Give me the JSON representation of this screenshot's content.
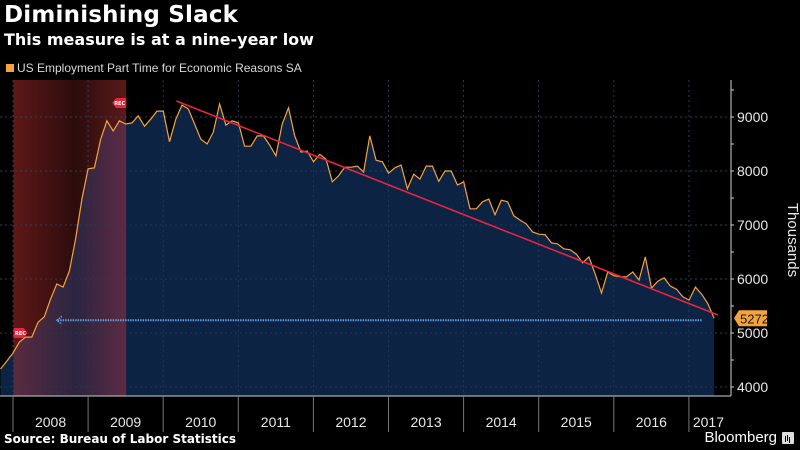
{
  "header": {
    "title": "Diminishing Slack",
    "subtitle": "This measure is at a nine-year low"
  },
  "footer": {
    "source": "Source: Bureau of Labor Statistics",
    "brand": "Bloomberg"
  },
  "colors": {
    "series": "#f5a33a",
    "area": "#0c2344",
    "trend": "#e8253e",
    "recession": "#6b1a1a",
    "arrow": "#5b9be0",
    "grid": "#555555"
  },
  "chart_data": {
    "type": "area",
    "title": "Diminishing Slack",
    "subtitle": "This measure is at a nine-year low",
    "legend": [
      "US Employment Part Time for Economic Reasons SA"
    ],
    "legend_position": "top-left",
    "ylabel": "Thousands",
    "xlabel": "",
    "ylim": [
      3850,
      9700
    ],
    "yticks": [
      4000,
      5000,
      6000,
      7000,
      8000,
      9000
    ],
    "xticks": [
      "2008",
      "2009",
      "2010",
      "2011",
      "2012",
      "2013",
      "2014",
      "2015",
      "2016",
      "2017"
    ],
    "x_start": "2007-10",
    "x_end": "2017-04",
    "grid": true,
    "series": [
      {
        "name": "US Employment Part Time for Economic Reasons SA",
        "frequency": "monthly",
        "start": "2007-10",
        "values": [
          4333,
          4480,
          4630,
          4830,
          4925,
          4925,
          5200,
          5300,
          5630,
          5910,
          5850,
          6150,
          6740,
          7480,
          8040,
          8060,
          8590,
          8930,
          8740,
          8930,
          8870,
          8890,
          9020,
          8830,
          8960,
          9110,
          9110,
          8540,
          8960,
          9220,
          9150,
          8870,
          8590,
          8500,
          8720,
          9240,
          8850,
          8930,
          8890,
          8460,
          8460,
          8650,
          8650,
          8480,
          8280,
          8870,
          9170,
          8650,
          8350,
          8370,
          8170,
          8310,
          8220,
          7800,
          7910,
          8070,
          8070,
          8090,
          7980,
          8650,
          8200,
          8170,
          7960,
          8060,
          8110,
          7670,
          7940,
          7850,
          8090,
          8090,
          7810,
          8000,
          8000,
          7740,
          7800,
          7300,
          7300,
          7430,
          7480,
          7190,
          7460,
          7430,
          7170,
          7090,
          7020,
          6870,
          6830,
          6820,
          6670,
          6650,
          6560,
          6540,
          6460,
          6300,
          6410,
          6090,
          5740,
          6130,
          6060,
          6040,
          6040,
          6130,
          5980,
          6410,
          5830,
          5960,
          6020,
          5870,
          5810,
          5670,
          5610,
          5850,
          5720,
          5540,
          5272
        ]
      }
    ],
    "last_value_label": "5272",
    "trendline": {
      "start_index": 28.1,
      "start_value": 9296,
      "end_index": 114.6,
      "end_value": 5333
    },
    "recession": {
      "start_index": 2,
      "end_index": 20,
      "label": "REC"
    },
    "annotation_arrow": {
      "from_index": 112.0,
      "to_index": 9.0,
      "value": 5272
    }
  }
}
